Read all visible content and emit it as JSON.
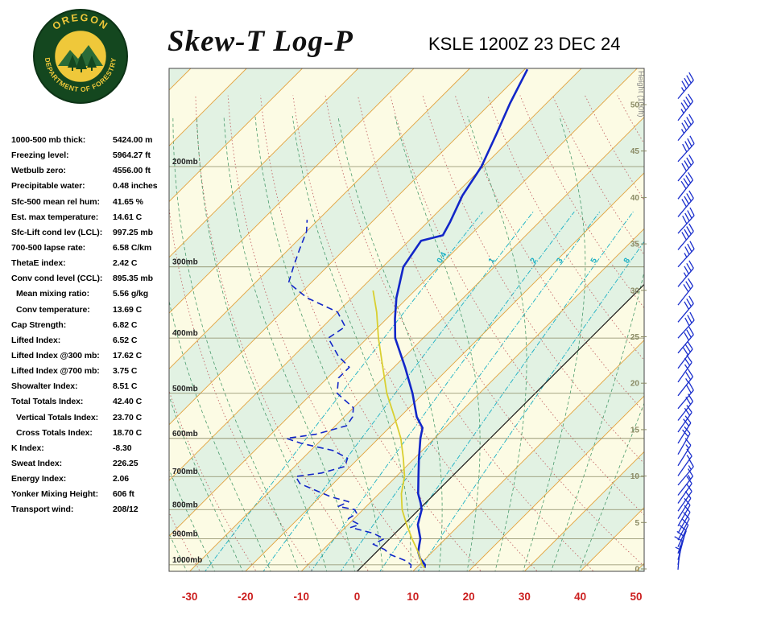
{
  "header": {
    "title": "Skew-T Log-P",
    "station": "KSLE 1200Z 23 DEC 24",
    "logo_text_top": "OREGON",
    "logo_text_bottom": "DEPARTMENT OF FORESTRY"
  },
  "indices": [
    {
      "label": "1000-500 mb thick:",
      "value": "5424.00 m",
      "indent": false
    },
    {
      "label": "Freezing level:",
      "value": "5964.27 ft",
      "indent": false
    },
    {
      "label": "Wetbulb zero:",
      "value": "4556.00 ft",
      "indent": false
    },
    {
      "label": "Precipitable water:",
      "value": "0.48 inches",
      "indent": false
    },
    {
      "label": "Sfc-500 mean rel hum:",
      "value": "41.65 %",
      "indent": false
    },
    {
      "label": "Est. max temperature:",
      "value": "14.61 C",
      "indent": false
    },
    {
      "label": "Sfc-Lift cond lev (LCL):",
      "value": "997.25 mb",
      "indent": false
    },
    {
      "label": "700-500 lapse rate:",
      "value": "6.58 C/km",
      "indent": false
    },
    {
      "label": "ThetaE index:",
      "value": "2.42 C",
      "indent": false
    },
    {
      "label": "Conv cond level (CCL):",
      "value": "895.35 mb",
      "indent": false
    },
    {
      "label": "Mean mixing ratio:",
      "value": "5.56 g/kg",
      "indent": true
    },
    {
      "label": "Conv temperature:",
      "value": "13.69 C",
      "indent": true
    },
    {
      "label": "Cap Strength:",
      "value": "6.82 C",
      "indent": false
    },
    {
      "label": "Lifted Index:",
      "value": "6.52 C",
      "indent": false
    },
    {
      "label": "Lifted Index @300 mb:",
      "value": "17.62 C",
      "indent": false
    },
    {
      "label": "Lifted Index @700 mb:",
      "value": "3.75 C",
      "indent": false
    },
    {
      "label": "Showalter Index:",
      "value": "8.51 C",
      "indent": false
    },
    {
      "label": "Total Totals Index:",
      "value": "42.40 C",
      "indent": false
    },
    {
      "label": "Vertical Totals Index:",
      "value": "23.70 C",
      "indent": true
    },
    {
      "label": "Cross Totals Index:",
      "value": "18.70 C",
      "indent": true
    },
    {
      "label": "K Index:",
      "value": "-8.30",
      "indent": false
    },
    {
      "label": "Sweat Index:",
      "value": "226.25",
      "indent": false
    },
    {
      "label": "Energy Index:",
      "value": "2.06",
      "indent": false
    },
    {
      "label": "Yonker Mixing Height:",
      "value": "606 ft",
      "indent": false
    },
    {
      "label": "Transport wind:",
      "value": "208/12",
      "indent": false
    }
  ],
  "chart_data": {
    "type": "line",
    "title": "Skew-T Log-P",
    "station": "KSLE 1200Z 23 DEC 24",
    "x_axis": {
      "ticks": [
        -30,
        -20,
        -10,
        0,
        10,
        20,
        30,
        40,
        50
      ],
      "unit": "degC"
    },
    "y_axis": {
      "scale": "log-pressure",
      "pressure_labels": [
        "200mb",
        "300mb",
        "400mb",
        "500mb",
        "600mb",
        "700mb",
        "800mb",
        "900mb",
        "1000mb"
      ]
    },
    "height_axis": {
      "title": "Height (100ft)",
      "ticks": [
        0,
        5,
        10,
        15,
        20,
        25,
        30,
        35,
        40,
        45,
        50
      ]
    },
    "mixing_ratio_labels": [
      "0.4",
      "1",
      "2",
      "3",
      "5",
      "8"
    ],
    "series": [
      {
        "name": "temperature",
        "units": [
          "mb",
          "degC"
        ],
        "points": [
          [
            1013,
            11.5
          ],
          [
            1000,
            11
          ],
          [
            975,
            9
          ],
          [
            950,
            7.5
          ],
          [
            925,
            6.5
          ],
          [
            900,
            5.5
          ],
          [
            850,
            2.5
          ],
          [
            800,
            0.5
          ],
          [
            780,
            -0.8
          ],
          [
            750,
            -3
          ],
          [
            700,
            -6
          ],
          [
            650,
            -9.2
          ],
          [
            600,
            -12.5
          ],
          [
            575,
            -14
          ],
          [
            550,
            -17
          ],
          [
            500,
            -22
          ],
          [
            450,
            -28
          ],
          [
            400,
            -35
          ],
          [
            370,
            -38.5
          ],
          [
            340,
            -42
          ],
          [
            300,
            -46.3
          ],
          [
            270,
            -47.8
          ],
          [
            264,
            -44.9
          ],
          [
            250,
            -46
          ],
          [
            225,
            -48.5
          ],
          [
            200,
            -50.3
          ],
          [
            175,
            -53.5
          ],
          [
            155,
            -56.5
          ],
          [
            135,
            -59.5
          ]
        ]
      },
      {
        "name": "dewpoint",
        "units": [
          "mb",
          "degC"
        ],
        "points": [
          [
            1013,
            9
          ],
          [
            1000,
            8.5
          ],
          [
            985,
            7
          ],
          [
            960,
            3
          ],
          [
            940,
            1
          ],
          [
            920,
            -2
          ],
          [
            900,
            -1
          ],
          [
            880,
            -4
          ],
          [
            860,
            -9
          ],
          [
            850,
            -8
          ],
          [
            830,
            -11
          ],
          [
            812,
            -10.5
          ],
          [
            800,
            -11.5
          ],
          [
            790,
            -15
          ],
          [
            775,
            -14
          ],
          [
            760,
            -18
          ],
          [
            740,
            -22
          ],
          [
            720,
            -26
          ],
          [
            700,
            -28
          ],
          [
            690,
            -24
          ],
          [
            672,
            -21
          ],
          [
            650,
            -22
          ],
          [
            630,
            -26
          ],
          [
            612,
            -33
          ],
          [
            600,
            -36.5
          ],
          [
            590,
            -32
          ],
          [
            570,
            -28
          ],
          [
            550,
            -28.5
          ],
          [
            530,
            -30
          ],
          [
            500,
            -35.5
          ],
          [
            470,
            -38
          ],
          [
            450,
            -38
          ],
          [
            430,
            -42
          ],
          [
            400,
            -47
          ],
          [
            382,
            -46
          ],
          [
            360,
            -50
          ],
          [
            340,
            -58
          ],
          [
            320,
            -64
          ],
          [
            300,
            -66
          ],
          [
            280,
            -68
          ],
          [
            260,
            -70
          ],
          [
            248,
            -72
          ]
        ]
      },
      {
        "name": "parcel",
        "units": [
          "mb",
          "degC"
        ],
        "points": [
          [
            1013,
            11.5
          ],
          [
            1000,
            10.5
          ],
          [
            950,
            7.5
          ],
          [
            900,
            4
          ],
          [
            850,
            0.5
          ],
          [
            800,
            -3
          ],
          [
            750,
            -6
          ],
          [
            700,
            -8.5
          ],
          [
            650,
            -12
          ],
          [
            600,
            -16
          ],
          [
            550,
            -21
          ],
          [
            500,
            -26.6
          ],
          [
            450,
            -32
          ],
          [
            400,
            -38
          ],
          [
            360,
            -43
          ],
          [
            330,
            -47.5
          ]
        ]
      }
    ],
    "wind_barbs": {
      "format": [
        "p_mb",
        "dir_deg",
        "spd_kt"
      ],
      "levels": [
        [
          1020,
          185,
          5
        ],
        [
          1000,
          190,
          8
        ],
        [
          980,
          195,
          10
        ],
        [
          955,
          200,
          10
        ],
        [
          930,
          205,
          12
        ],
        [
          905,
          208,
          12
        ],
        [
          880,
          210,
          10
        ],
        [
          855,
          210,
          10
        ],
        [
          830,
          212,
          10
        ],
        [
          805,
          215,
          12
        ],
        [
          780,
          215,
          12
        ],
        [
          755,
          218,
          15
        ],
        [
          725,
          220,
          15
        ],
        [
          698,
          215,
          15
        ],
        [
          670,
          212,
          15
        ],
        [
          640,
          210,
          18
        ],
        [
          612,
          212,
          20
        ],
        [
          585,
          215,
          20
        ],
        [
          558,
          218,
          22
        ],
        [
          532,
          220,
          22
        ],
        [
          505,
          218,
          25
        ],
        [
          478,
          215,
          25
        ],
        [
          452,
          217,
          28
        ],
        [
          425,
          220,
          30
        ],
        [
          400,
          222,
          30
        ],
        [
          375,
          220,
          32
        ],
        [
          350,
          218,
          32
        ],
        [
          325,
          220,
          35
        ],
        [
          300,
          222,
          35
        ],
        [
          280,
          220,
          38
        ],
        [
          262,
          222,
          38
        ],
        [
          245,
          220,
          40
        ],
        [
          228,
          218,
          40
        ],
        [
          212,
          220,
          42
        ],
        [
          196,
          222,
          42
        ],
        [
          180,
          220,
          45
        ],
        [
          166,
          218,
          45
        ],
        [
          152,
          220,
          45
        ]
      ]
    },
    "colors": {
      "temperature_trace": "#1226c8",
      "dewpoint_trace": "#1226c8",
      "parcel_trace": "#d9cf30",
      "isotherm": "#e2a23e",
      "zero_isotherm": "#222222",
      "dry_adiabat": "#c46a6a",
      "moist_adiabat": "#2e8b57",
      "mixing_ratio": "#1ab0c4",
      "band_cream": "#fcfbe4",
      "band_green": "#e2f2e3",
      "pressure_line": "#8a8a64",
      "axis_label_red": "#cc2020",
      "height_label": "#8a8a64",
      "wind_barb": "#1a2ecc",
      "logo_green": "#14471f",
      "logo_yellow": "#efc83a"
    }
  }
}
